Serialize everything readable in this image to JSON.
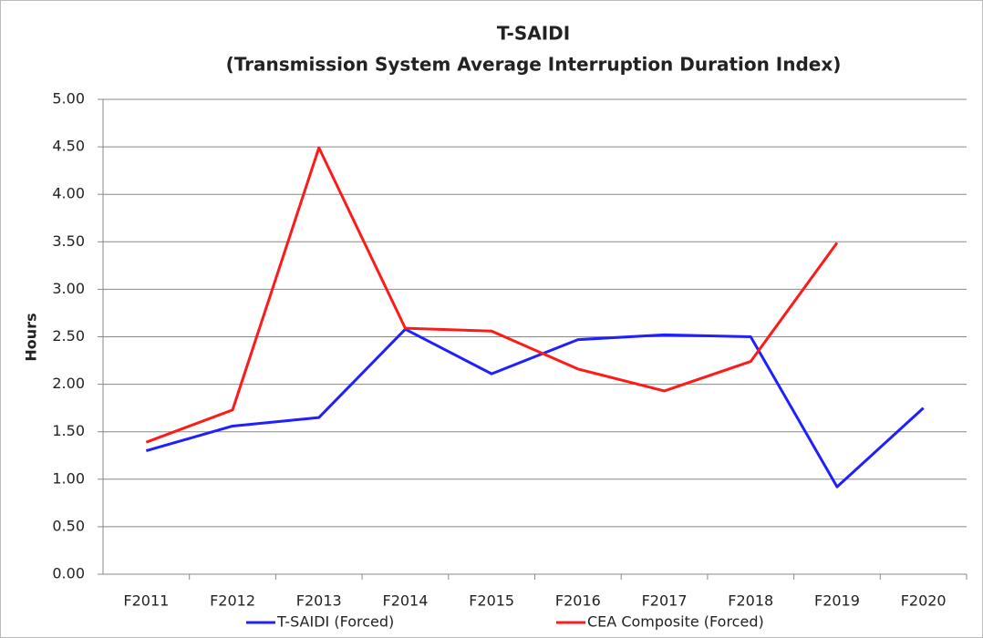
{
  "chart_data": {
    "type": "line",
    "title": "T-SAIDI",
    "subtitle": "(Transmission System Average Interruption Duration Index)",
    "y_label": "Hours",
    "categories": [
      "F2011",
      "F2012",
      "F2013",
      "F2014",
      "F2015",
      "F2016",
      "F2017",
      "F2018",
      "F2019",
      "F2020"
    ],
    "series": [
      {
        "name": "T-SAIDI (Forced)",
        "color": "#2020ff",
        "values": [
          1.3,
          1.56,
          1.65,
          2.58,
          2.11,
          2.47,
          2.52,
          2.5,
          0.92,
          1.75
        ]
      },
      {
        "name": "CEA Composite (Forced)",
        "color": "#ff1a1a",
        "values": [
          1.39,
          1.73,
          4.49,
          2.59,
          2.56,
          2.16,
          1.93,
          2.24,
          3.49,
          null
        ]
      }
    ],
    "ylim": [
      0,
      5
    ],
    "yticks": [
      {
        "value": 0,
        "label": "0.00"
      },
      {
        "value": 0.5,
        "label": "0.50"
      },
      {
        "value": 1,
        "label": "1.00"
      },
      {
        "value": 1.5,
        "label": "1.50"
      },
      {
        "value": 2,
        "label": "2.00"
      },
      {
        "value": 2.5,
        "label": "2.50"
      },
      {
        "value": 3,
        "label": "3.00"
      },
      {
        "value": 3.5,
        "label": "3.50"
      },
      {
        "value": 4,
        "label": "4.00"
      },
      {
        "value": 4.5,
        "label": "4.50"
      },
      {
        "value": 5,
        "label": "5.00"
      }
    ],
    "grid": true,
    "legend": "bottom"
  }
}
